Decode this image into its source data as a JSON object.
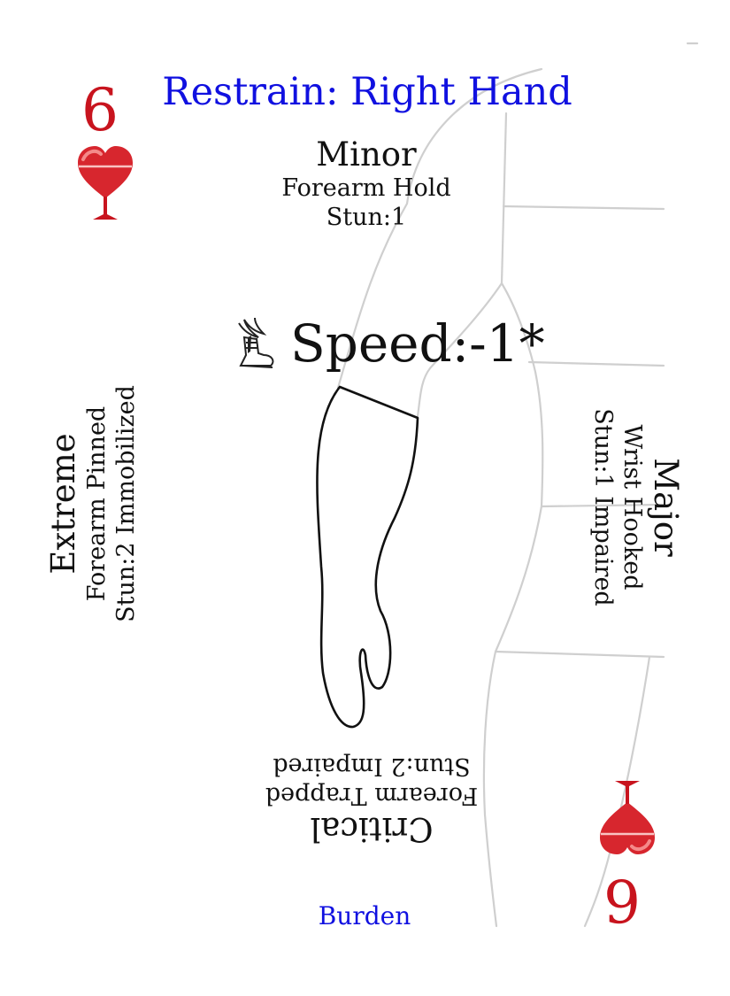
{
  "card": {
    "title": "Restrain: Right Hand",
    "rank": "6",
    "suit": "hearts",
    "suit_color": "#c8141e",
    "title_color": "#1010e0",
    "speed": "Speed:-1*",
    "speed_icon": "winged-boot-icon",
    "footer": "Burden"
  },
  "levels": {
    "minor": {
      "name": "Minor",
      "line1": "Forearm Hold",
      "line2": "Stun:1"
    },
    "major": {
      "name": "Major",
      "line1": "Wrist Hooked",
      "line2": "Stun:1 Impaired"
    },
    "critical": {
      "name": "Critical",
      "line1": "Forearm Trapped",
      "line2": "Stun:2 Impaired"
    },
    "extreme": {
      "name": "Extreme",
      "line1": "Forearm Pinned",
      "line2": "Stun:2 Immobilized"
    }
  }
}
